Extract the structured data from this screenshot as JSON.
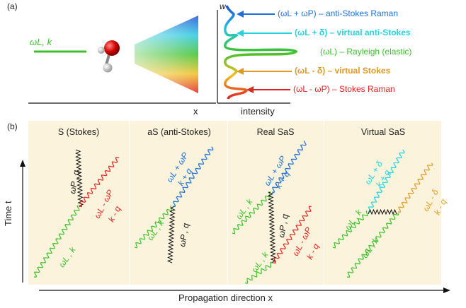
{
  "panel_a": {
    "tag": "(a)",
    "beam_label": "ωL, k",
    "x_axis": "x",
    "w_axis": "w",
    "intensity_axis": "intensity",
    "lines": [
      {
        "id": "antistokes-raman",
        "text": "(ωL + ωP) – anti-Stokes Raman",
        "color": "#1e6fd9"
      },
      {
        "id": "virtual-antistokes",
        "text": "(ωL + δ) – virtual anti-Stokes",
        "color": "#25d4e0"
      },
      {
        "id": "rayleigh",
        "text": "(ωL) – Rayleigh (elastic)",
        "color": "#3fbf2e"
      },
      {
        "id": "virtual-stokes",
        "text": "(ωL - δ) – virtual Stokes",
        "color": "#e09a22"
      },
      {
        "id": "stokes-raman",
        "text": "(ωL - ωP) – Stokes  Raman",
        "color": "#e02424"
      }
    ]
  },
  "panel_b": {
    "tag": "(b)",
    "time_axis": "Time t",
    "x_axis": "Propagation direction x",
    "panels": [
      {
        "title": "S (Stokes)"
      },
      {
        "title": "aS (anti-Stokes)"
      },
      {
        "title": "Real SaS"
      },
      {
        "title": "Virtual SaS"
      }
    ],
    "labels": {
      "wl_k": "ωL , k",
      "wp_q": "ωP , q",
      "wl_minus_wp": "ωL - ωP",
      "k_minus_q": "k - q",
      "wl_plus_wp": "ωL + ωP",
      "k_plus_q": "k + q",
      "wl_plus_d": "ωL + δ",
      "wl_minus_d": "ωL - δ"
    },
    "colors": {
      "green": "#3fbf2e",
      "red": "#e02424",
      "blue": "#1e6fd9",
      "cyan": "#25d4e0",
      "orange": "#e09a22",
      "black": "#111111"
    }
  }
}
